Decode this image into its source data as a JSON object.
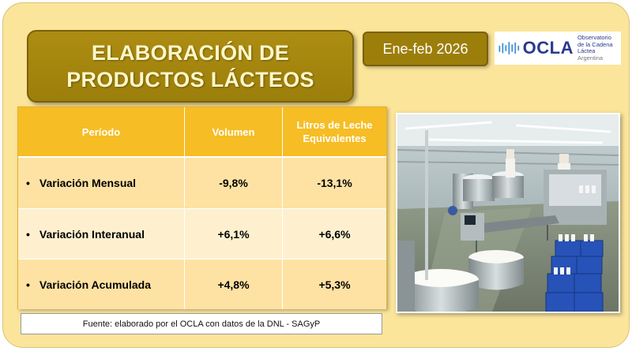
{
  "title": {
    "line1": "ELABORACIÓN DE",
    "line2": "PRODUCTOS LÁCTEOS"
  },
  "period_label": "Ene-feb 2026",
  "logo": {
    "name": "OCLA",
    "line1": "Observatorio",
    "line2": "de la Cadena Láctea",
    "line3": "Argentina"
  },
  "table": {
    "headers": [
      "Período",
      "Volumen",
      "Litros de Leche Equivalentes"
    ],
    "rows": [
      {
        "label": "Variación Mensual",
        "volumen": "-9,8%",
        "litros": "-13,1%"
      },
      {
        "label": "Variación Interanual",
        "volumen": "+6,1%",
        "litros": "+6,6%"
      },
      {
        "label": "Variación Acumulada",
        "volumen": "+4,8%",
        "litros": "+5,3%"
      }
    ]
  },
  "source": "Fuente: elaborado por el OCLA con datos de la DNL - SAGyP",
  "colors": {
    "background": "#fbe59b",
    "title_box": "#9c7e0b",
    "header": "#f6bd24",
    "row_dark": "#fee2a3",
    "row_light": "#fef0cf",
    "logo_blue": "#2a3a8f"
  }
}
